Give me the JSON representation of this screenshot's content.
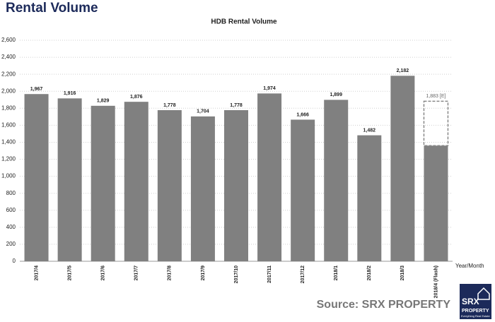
{
  "header": {
    "title": "Rental Volume"
  },
  "chart_data": {
    "type": "bar",
    "title": "HDB Rental Volume",
    "x_label": "Year/Month",
    "categories": [
      "2017/4",
      "2017/5",
      "2017/6",
      "2017/7",
      "2017/8",
      "2017/9",
      "2017/10",
      "2017/11",
      "2017/12",
      "2018/1",
      "2018/2",
      "2018/3",
      "2018/4 (Flash)"
    ],
    "values": [
      1967,
      1916,
      1829,
      1876,
      1778,
      1704,
      1778,
      1974,
      1666,
      1899,
      1482,
      2182,
      1360
    ],
    "value_labels": [
      "1,967",
      "1,916",
      "1,829",
      "1,876",
      "1,778",
      "1,704",
      "1,778",
      "1,974",
      "1,666",
      "1,899",
      "1,482",
      "2,182",
      null
    ],
    "estimate": {
      "value": 1883,
      "label": "1,883 [E]"
    },
    "color": "#808080",
    "ylim": [
      0,
      2600
    ],
    "yticks": [
      0,
      200,
      400,
      600,
      800,
      {
        "value": 1000,
        "label": "1,000"
      },
      {
        "value": 1200,
        "label": "1,200"
      },
      {
        "value": 1400,
        "label": "1,400"
      },
      {
        "value": 1600,
        "label": "1,600"
      },
      {
        "value": 1800,
        "label": "1,800"
      },
      {
        "value": 2000,
        "label": "2,000"
      },
      {
        "value": 2200,
        "label": "2,200"
      },
      {
        "value": 2400,
        "label": "2,400"
      },
      {
        "value": 2600,
        "label": "2,600"
      }
    ],
    "grid": true
  },
  "footer": {
    "source": "Source:  SRX PROPERTY",
    "logo": "SRX",
    "logo_sub": "PROPERTY",
    "logo_tagline": "Everything Real Estate"
  }
}
